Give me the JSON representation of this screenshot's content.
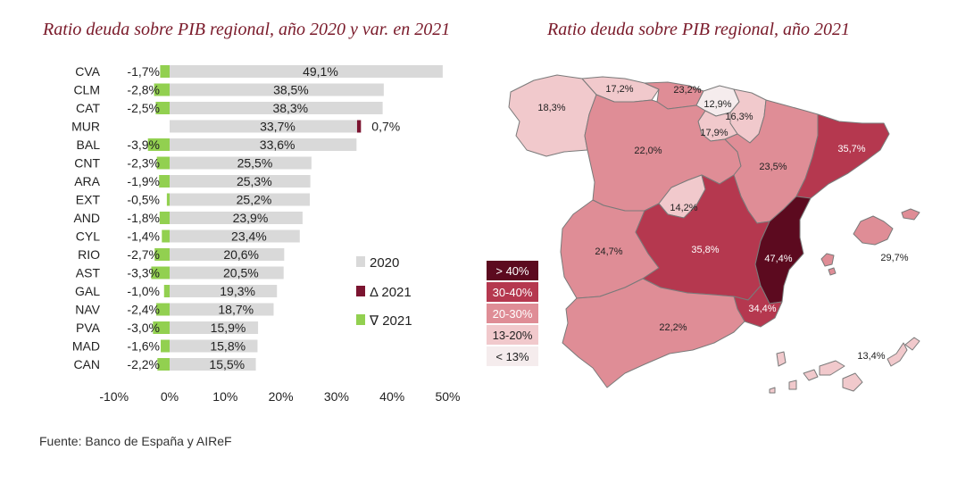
{
  "left_title": "Ratio deuda sobre PIB regional, año 2020 y var. en 2021",
  "right_title": "Ratio deuda sobre PIB regional, año 2021",
  "source": "Fuente: Banco de España y AIReF",
  "chart_data": [
    {
      "type": "bar",
      "orientation": "horizontal",
      "title": "Ratio deuda sobre PIB regional, año 2020 y var. en 2021",
      "categories": [
        "CVA",
        "CLM",
        "CAT",
        "MUR",
        "BAL",
        "CNT",
        "ARA",
        "EXT",
        "AND",
        "CYL",
        "RIO",
        "AST",
        "GAL",
        "NAV",
        "PVA",
        "MAD",
        "CAN"
      ],
      "series": [
        {
          "name": "2020",
          "color": "#d9d9d9",
          "values": [
            49.1,
            38.5,
            38.3,
            33.7,
            33.6,
            25.5,
            25.3,
            25.2,
            23.9,
            23.4,
            20.6,
            20.5,
            19.3,
            18.7,
            15.9,
            15.8,
            15.5
          ],
          "labels": [
            "49,1%",
            "38,5%",
            "38,3%",
            "33,7%",
            "33,6%",
            "25,5%",
            "25,3%",
            "25,2%",
            "23,9%",
            "23,4%",
            "20,6%",
            "20,5%",
            "19,3%",
            "18,7%",
            "15,9%",
            "15,8%",
            "15,5%"
          ]
        },
        {
          "name": "Δ 2021",
          "color": "#7b1430",
          "values": [
            null,
            null,
            null,
            0.7,
            null,
            null,
            null,
            null,
            null,
            null,
            null,
            null,
            null,
            null,
            null,
            null,
            null
          ],
          "labels": [
            "",
            "",
            "",
            "0,7%",
            "",
            "",
            "",
            "",
            "",
            "",
            "",
            "",
            "",
            "",
            "",
            "",
            ""
          ]
        },
        {
          "name": "∇ 2021",
          "color": "#92d050",
          "values": [
            -1.7,
            -2.8,
            -2.5,
            null,
            -3.9,
            -2.3,
            -1.9,
            -0.5,
            -1.8,
            -1.4,
            -2.7,
            -3.3,
            -1.0,
            -2.4,
            -3.0,
            -1.6,
            -2.2
          ],
          "labels": [
            "-1,7%",
            "-2,8%",
            "-2,5%",
            "",
            "-3,9%",
            "-2,3%",
            "-1,9%",
            "-0,5%",
            "-1,8%",
            "-1,4%",
            "-2,7%",
            "-3,3%",
            "-1,0%",
            "-2,4%",
            "-3,0%",
            "-1,6%",
            "-2,2%"
          ]
        }
      ],
      "xlim": [
        -10,
        50
      ],
      "xticks": [
        "-10%",
        "0%",
        "10%",
        "20%",
        "30%",
        "40%",
        "50%"
      ],
      "legend": [
        "2020",
        "Δ 2021",
        "∇ 2021"
      ],
      "grid": false
    },
    {
      "type": "choropleth",
      "title": "Ratio deuda sobre PIB regional, año 2021",
      "legend": [
        {
          "label": "> 40%",
          "color": "#5c0a1f"
        },
        {
          "label": "30-40%",
          "color": "#b5384f"
        },
        {
          "label": "20-30%",
          "color": "#df8d96"
        },
        {
          "label": "13-20%",
          "color": "#f1c9cc"
        },
        {
          "label": "< 13%",
          "color": "#f5eced"
        }
      ],
      "regions": [
        {
          "name": "GAL",
          "label": "18,3%",
          "value": 18.3
        },
        {
          "name": "AST",
          "label": "17,2%",
          "value": 17.2
        },
        {
          "name": "CNT",
          "label": "23,2%",
          "value": 23.2
        },
        {
          "name": "PVA",
          "label": "12,9%",
          "value": 12.9
        },
        {
          "name": "NAV",
          "label": "16,3%",
          "value": 16.3
        },
        {
          "name": "RIO",
          "label": "17,9%",
          "value": 17.9
        },
        {
          "name": "CYL",
          "label": "22,0%",
          "value": 22.0
        },
        {
          "name": "ARA",
          "label": "23,5%",
          "value": 23.5
        },
        {
          "name": "CAT",
          "label": "35,7%",
          "value": 35.7
        },
        {
          "name": "MAD",
          "label": "14,2%",
          "value": 14.2
        },
        {
          "name": "EXT",
          "label": "24,7%",
          "value": 24.7
        },
        {
          "name": "CLM",
          "label": "35,8%",
          "value": 35.8
        },
        {
          "name": "CVA",
          "label": "47,4%",
          "value": 47.4
        },
        {
          "name": "MUR",
          "label": "34,4%",
          "value": 34.4
        },
        {
          "name": "AND",
          "label": "22,2%",
          "value": 22.2
        },
        {
          "name": "BAL",
          "label": "29,7%",
          "value": 29.7
        },
        {
          "name": "CAN",
          "label": "13,4%",
          "value": 13.4
        }
      ]
    }
  ]
}
